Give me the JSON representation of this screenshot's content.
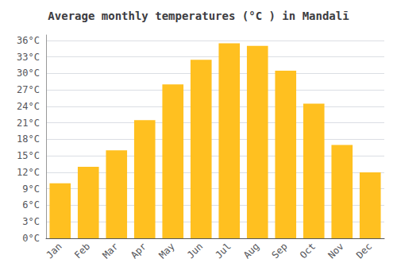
{
  "chart_data": {
    "type": "bar",
    "title": "Average monthly temperatures (°C ) in Mandalī",
    "categories": [
      "Jan",
      "Feb",
      "Mar",
      "Apr",
      "May",
      "Jun",
      "Jul",
      "Aug",
      "Sep",
      "Oct",
      "Nov",
      "Dec"
    ],
    "values": [
      10,
      13,
      16,
      21.5,
      28,
      32.5,
      35.5,
      35,
      30.5,
      24.5,
      17,
      12
    ],
    "color": "#FFC020",
    "ylim": [
      0,
      37
    ],
    "yticks": [
      {
        "value": 0,
        "label": "0°C"
      },
      {
        "value": 3,
        "label": "3°C"
      },
      {
        "value": 6,
        "label": "6°C"
      },
      {
        "value": 9,
        "label": "9°C"
      },
      {
        "value": 12,
        "label": "12°C"
      },
      {
        "value": 15,
        "label": "15°C"
      },
      {
        "value": 18,
        "label": "18°C"
      },
      {
        "value": 21,
        "label": "21°C"
      },
      {
        "value": 24,
        "label": "24°C"
      },
      {
        "value": 27,
        "label": "27°C"
      },
      {
        "value": 30,
        "label": "30°C"
      },
      {
        "value": 33,
        "label": "33°C"
      },
      {
        "value": 36,
        "label": "36°C"
      }
    ],
    "grid": true
  }
}
